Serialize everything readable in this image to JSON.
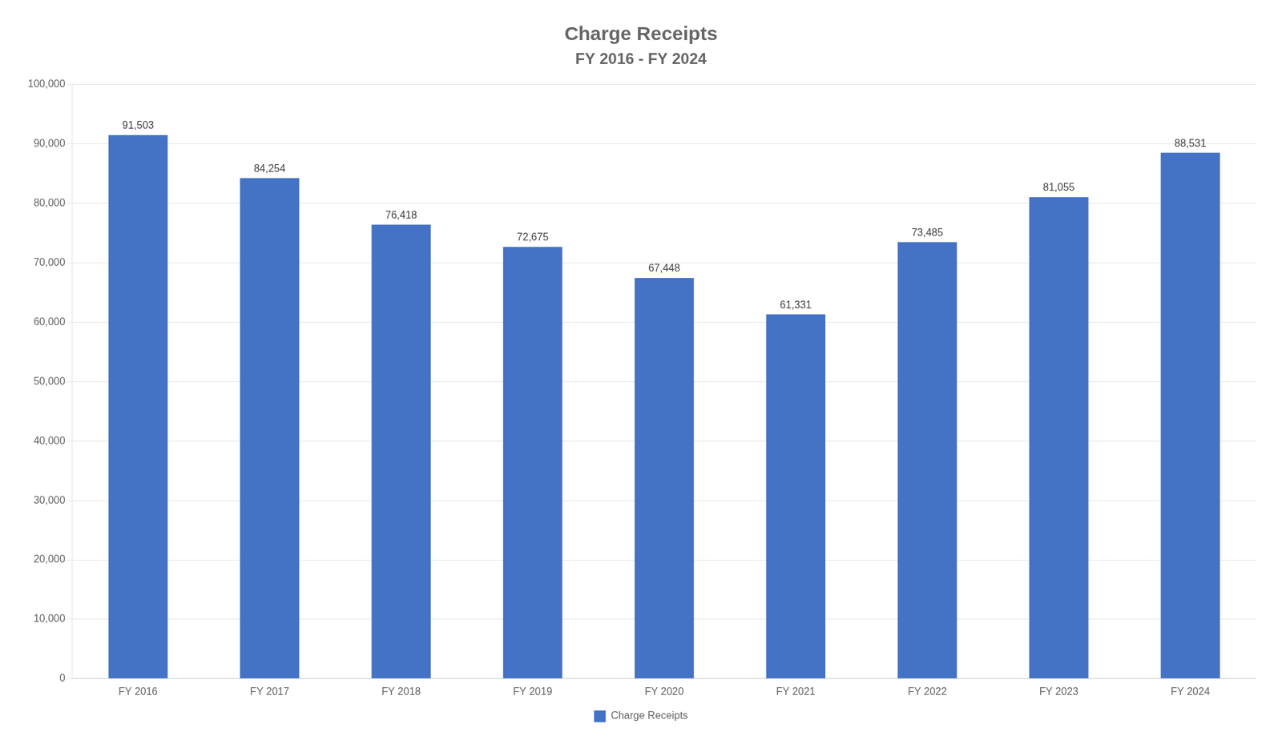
{
  "chart_data": {
    "type": "bar",
    "title": "Charge Receipts",
    "subtitle": "FY 2016 - FY 2024",
    "categories": [
      "FY 2016",
      "FY 2017",
      "FY 2018",
      "FY 2019",
      "FY 2020",
      "FY 2021",
      "FY 2022",
      "FY 2023",
      "FY 2024"
    ],
    "series": [
      {
        "name": "Charge Receipts",
        "color": "#4472C4",
        "values": [
          91503,
          84254,
          76418,
          72675,
          67448,
          61331,
          73485,
          81055,
          88531
        ],
        "value_labels": [
          "91,503",
          "84,254",
          "76,418",
          "72,675",
          "67,448",
          "61,331",
          "73,485",
          "81,055",
          "88,531"
        ]
      }
    ],
    "ylim": [
      0,
      100000
    ],
    "yticks": [
      0,
      {
        "value": 10000,
        "label": "10,000"
      },
      {
        "value": 20000,
        "label": "20,000"
      },
      {
        "value": 30000,
        "label": "30,000"
      },
      {
        "value": 40000,
        "label": "40,000"
      },
      {
        "value": 50000,
        "label": "50,000"
      },
      {
        "value": 60000,
        "label": "60,000"
      },
      {
        "value": 70000,
        "label": "70,000"
      },
      {
        "value": 80000,
        "label": "80,000"
      },
      {
        "value": 90000,
        "label": "90,000"
      },
      {
        "value": 100000,
        "label": "100,000"
      }
    ],
    "grid": true,
    "legend": "bottom",
    "data_labels": true
  }
}
